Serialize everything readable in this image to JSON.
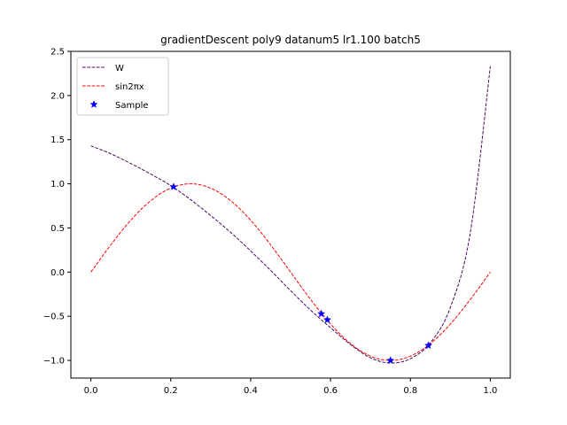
{
  "chart_data": {
    "type": "line",
    "title": "gradientDescent poly9 datanum5 lr1.100 batch5",
    "xlabel": "",
    "ylabel": "",
    "xlim": [
      -0.05,
      1.05
    ],
    "ylim": [
      -1.2,
      2.5
    ],
    "x_ticks": [
      "0.0",
      "0.2",
      "0.4",
      "0.6",
      "0.8",
      "1.0"
    ],
    "y_ticks": [
      "−1.0",
      "−0.5",
      "0.0",
      "0.5",
      "1.0",
      "1.5",
      "2.0",
      "2.5"
    ],
    "grid": false,
    "legend_position": "top-left",
    "series": [
      {
        "name": "W",
        "style": "dashed",
        "color": "#4b0a5e",
        "x": [
          0.0,
          0.05,
          0.1,
          0.15,
          0.2,
          0.25,
          0.3,
          0.35,
          0.4,
          0.45,
          0.5,
          0.55,
          0.6,
          0.65,
          0.7,
          0.75,
          0.8,
          0.85,
          0.9,
          0.95,
          1.0
        ],
        "y": [
          1.43,
          1.34,
          1.23,
          1.11,
          0.98,
          0.82,
          0.64,
          0.45,
          0.24,
          0.02,
          -0.21,
          -0.43,
          -0.63,
          -0.82,
          -0.97,
          -1.03,
          -0.98,
          -0.8,
          -0.4,
          0.45,
          2.33
        ]
      },
      {
        "name": "sin2πx",
        "style": "dashed",
        "color": "#ff0000",
        "function": "sin2pi",
        "x_range": [
          0,
          1
        ]
      },
      {
        "name": "Sample",
        "style": "marker-star",
        "color": "#0000ff",
        "x": [
          0.207,
          0.577,
          0.592,
          0.75,
          0.845
        ],
        "y": [
          0.966,
          -0.472,
          -0.54,
          -1.0,
          -0.831
        ]
      }
    ]
  }
}
